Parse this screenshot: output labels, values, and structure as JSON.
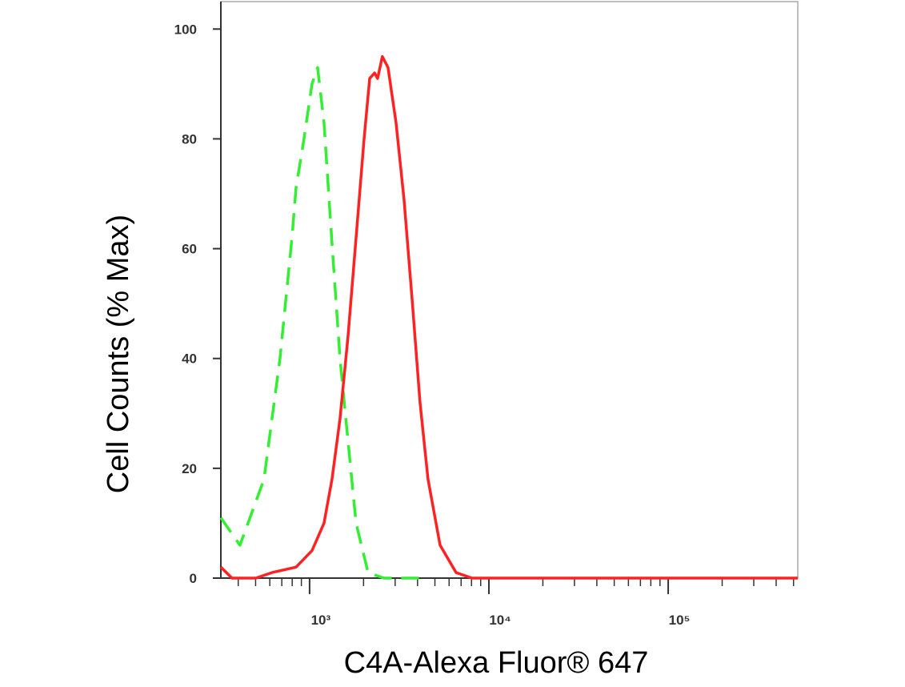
{
  "chart_data": {
    "type": "line",
    "xscale": "log",
    "xlabel": "C4A-Alexa Fluor® 647",
    "ylabel": "Cell Counts (% Max)",
    "xlim": [
      320,
      528000
    ],
    "ylim": [
      0,
      105
    ],
    "xticks": [
      {
        "value": 1000,
        "label": "10³"
      },
      {
        "value": 10000,
        "label": "10⁴"
      },
      {
        "value": 100000,
        "label": "10⁵"
      }
    ],
    "xminorticks": [
      400,
      500,
      600,
      700,
      800,
      900,
      2000,
      3000,
      4000,
      5000,
      6000,
      7000,
      8000,
      9000,
      20000,
      30000,
      40000,
      50000,
      60000,
      70000,
      80000,
      90000,
      200000,
      300000,
      400000,
      500000
    ],
    "yticks": [
      0,
      20,
      40,
      60,
      80,
      100
    ],
    "series": [
      {
        "color": "#33ee33",
        "linestyle": "dashed",
        "x": [
          320,
          409,
          557,
          684,
          798,
          840,
          931,
          1031,
          1108,
          1203,
          1333,
          1478,
          1638,
          1816,
          2119,
          2600,
          4350
        ],
        "values": [
          11,
          6,
          18,
          40,
          62,
          71,
          80,
          90,
          93,
          83,
          61,
          40,
          25,
          10,
          1,
          0,
          0
        ]
      },
      {
        "color": "#ff2222",
        "linestyle": "solid",
        "x": [
          320,
          369,
          502,
          617,
          840,
          1031,
          1203,
          1333,
          1478,
          1638,
          1816,
          2014,
          2164,
          2303,
          2395,
          2545,
          2738,
          3034,
          3363,
          3727,
          4130,
          4578,
          5344,
          6565,
          8054,
          528000
        ],
        "values": [
          2,
          0,
          0,
          1,
          2,
          5,
          10,
          18,
          29,
          44,
          62,
          80,
          91,
          92,
          91,
          95,
          93,
          83,
          69,
          51,
          32,
          18,
          6,
          1,
          0,
          0
        ]
      }
    ]
  }
}
